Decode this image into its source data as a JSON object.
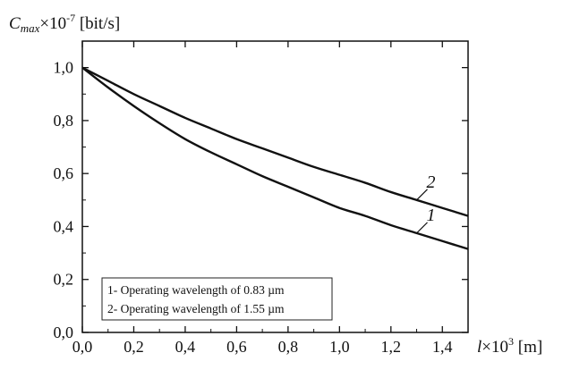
{
  "chart_data": {
    "type": "line",
    "title": "",
    "xlabel": {
      "var": "l",
      "mult": "×10",
      "exp": "3",
      "unit": " [m]"
    },
    "ylabel": {
      "var": "C",
      "sub": "max",
      "mult": "×10",
      "exp": "-7",
      "unit": " [bit/s]"
    },
    "xlim": [
      0,
      1.5
    ],
    "ylim": [
      0,
      1.1
    ],
    "x_ticks": [
      0.0,
      0.2,
      0.4,
      0.6,
      0.8,
      1.0,
      1.2,
      1.4
    ],
    "x_tick_labels": [
      "0,0",
      "0,2",
      "0,4",
      "0,6",
      "0,8",
      "1,0",
      "1,2",
      "1,4"
    ],
    "y_ticks": [
      0.0,
      0.2,
      0.4,
      0.6,
      0.8,
      1.0
    ],
    "y_tick_labels": [
      "0,0",
      "0,2",
      "0,4",
      "0,6",
      "0,8",
      "1,0"
    ],
    "grid": false,
    "legend_position": "bottom-left",
    "legend": [
      "1- Operating wavelength of 0.83 µm",
      "2- Operating wavelength of 1.55 µm"
    ],
    "series": [
      {
        "label": "1",
        "x": [
          0.0,
          0.1,
          0.2,
          0.3,
          0.4,
          0.5,
          0.6,
          0.7,
          0.8,
          0.9,
          1.0,
          1.1,
          1.2,
          1.3,
          1.4,
          1.5
        ],
        "y": [
          1.0,
          0.925,
          0.855,
          0.79,
          0.73,
          0.68,
          0.635,
          0.59,
          0.55,
          0.51,
          0.47,
          0.44,
          0.405,
          0.375,
          0.345,
          0.315
        ]
      },
      {
        "label": "2",
        "x": [
          0.0,
          0.1,
          0.2,
          0.3,
          0.4,
          0.5,
          0.6,
          0.7,
          0.8,
          0.9,
          1.0,
          1.1,
          1.2,
          1.3,
          1.4,
          1.5
        ],
        "y": [
          1.0,
          0.95,
          0.9,
          0.855,
          0.81,
          0.77,
          0.73,
          0.695,
          0.66,
          0.625,
          0.595,
          0.565,
          0.53,
          0.5,
          0.47,
          0.44
        ]
      }
    ]
  }
}
